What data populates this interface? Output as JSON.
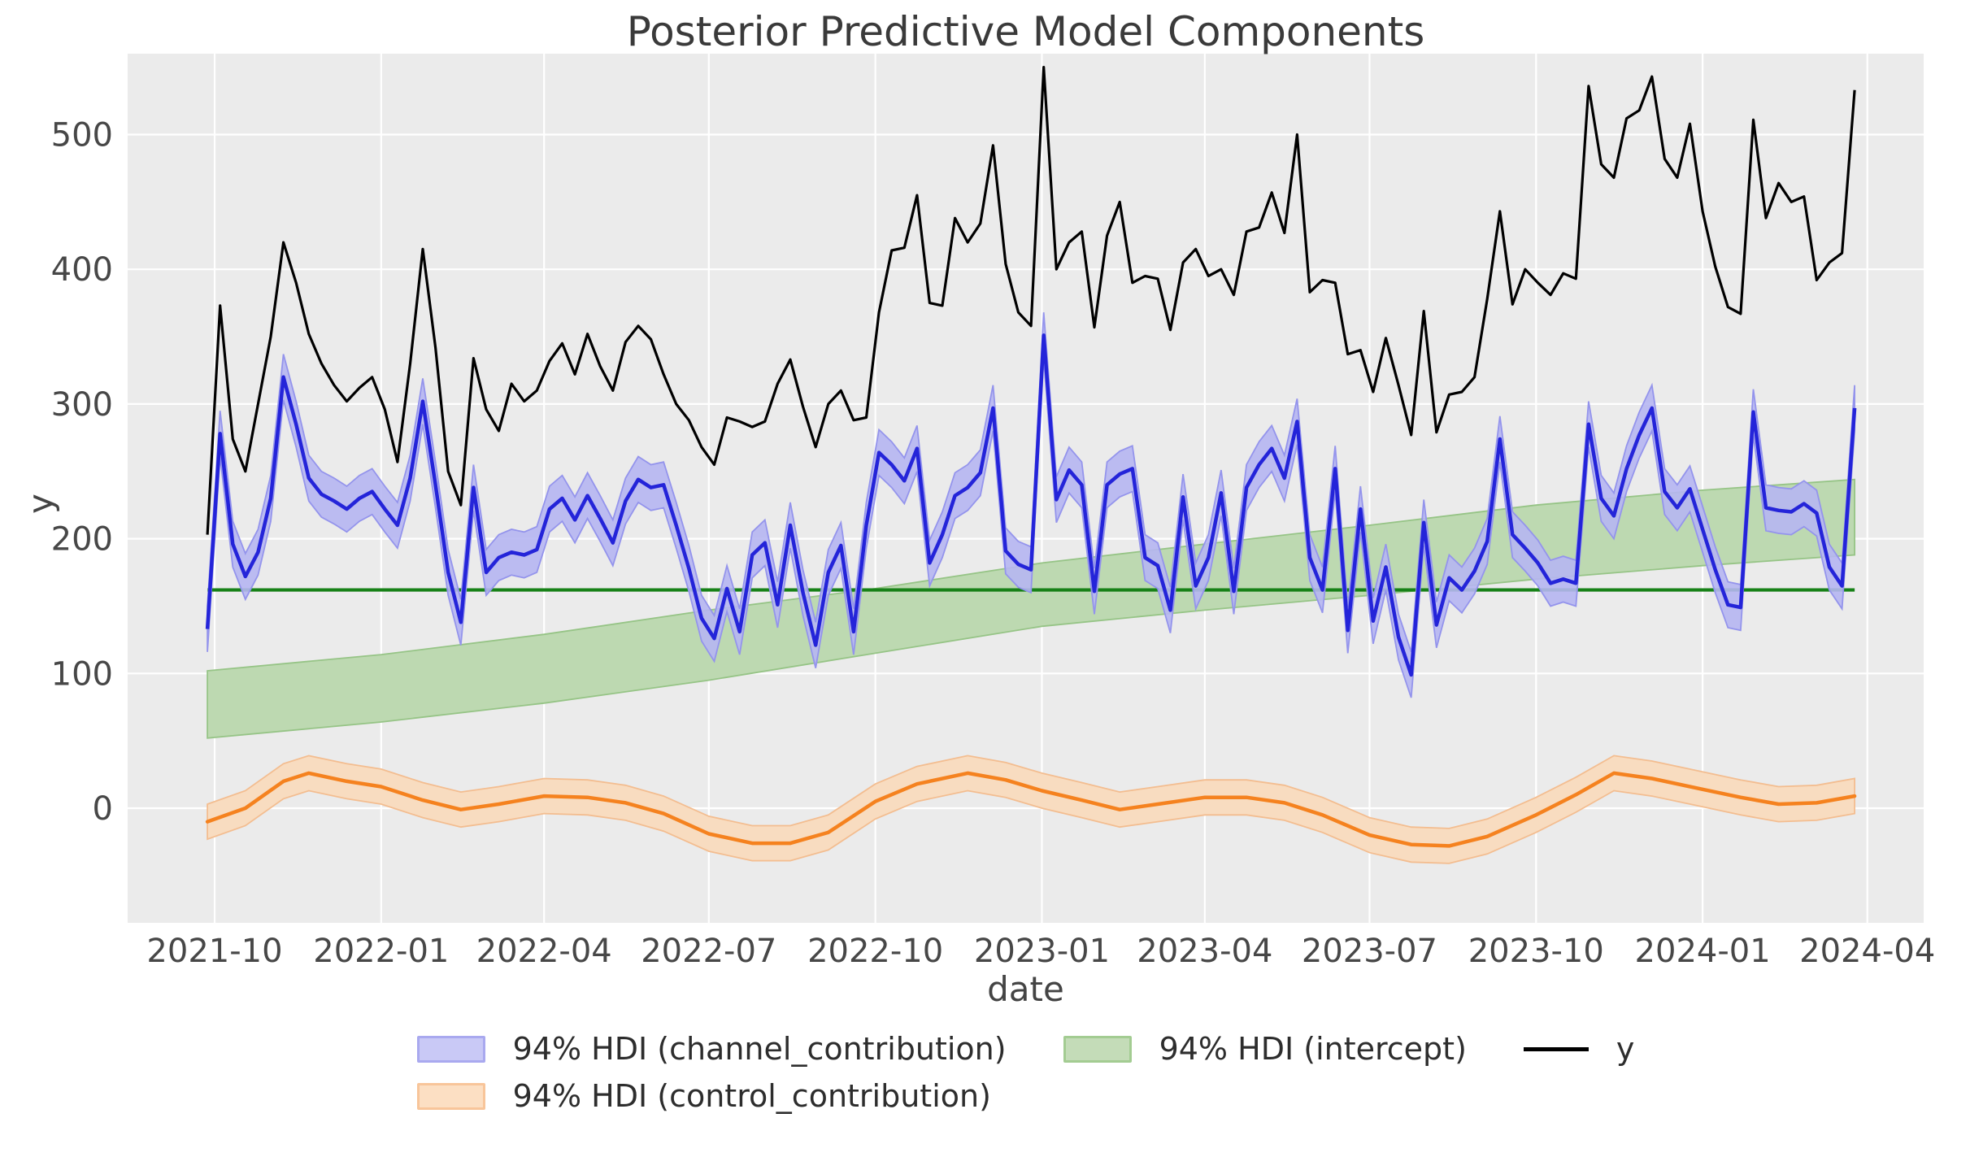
{
  "title": "Posterior Predictive Model Components",
  "axes": {
    "xlabel": "date",
    "ylabel": "y"
  },
  "legend": {
    "channel_label": "94% HDI (channel_contribution)",
    "intercept_label": "94% HDI (intercept)",
    "y_label": "y",
    "control_label": "94% HDI (control_contribution)"
  },
  "colors": {
    "plot_bg": "#ebebeb",
    "grid": "#ffffff",
    "y_line": "#000000",
    "channel_line": "#2424d9",
    "channel_band": "#b6b6f2",
    "channel_band_edge": "#9494ec",
    "intercept_line": "#178117",
    "intercept_band": "#bdd9b1",
    "intercept_band_edge": "#96c486",
    "control_line": "#f5821f",
    "control_band": "#f8dcc0",
    "control_band_edge": "#f3bd90",
    "tick_text": "#474747",
    "title_text": "#3a3a3a"
  },
  "chart_data": {
    "type": "line",
    "title": "Posterior Predictive Model Components",
    "xlabel": "date",
    "ylabel": "y",
    "grid": true,
    "legend_position": "below",
    "ylim": [
      -85,
      560
    ],
    "y_ticks": [
      0,
      100,
      200,
      300,
      400,
      500
    ],
    "x_ticks": [
      {
        "label": "2021-10",
        "date": "2021-10-01"
      },
      {
        "label": "2022-01",
        "date": "2022-01-01"
      },
      {
        "label": "2022-04",
        "date": "2022-04-01"
      },
      {
        "label": "2022-07",
        "date": "2022-07-01"
      },
      {
        "label": "2022-10",
        "date": "2022-10-01"
      },
      {
        "label": "2023-01",
        "date": "2023-01-01"
      },
      {
        "label": "2023-04",
        "date": "2023-04-01"
      },
      {
        "label": "2023-07",
        "date": "2023-07-01"
      },
      {
        "label": "2023-10",
        "date": "2023-10-01"
      },
      {
        "label": "2024-01",
        "date": "2024-01-01"
      },
      {
        "label": "2024-04",
        "date": "2024-04-01"
      }
    ],
    "weekly_x": {
      "start_date": "2021-09-27",
      "interval_days": 7,
      "n_points": 131
    },
    "series": [
      {
        "name": "y",
        "legend": "y",
        "kind": "line",
        "color": "#000000",
        "values": [
          203,
          373,
          274,
          250,
          300,
          350,
          420,
          390,
          352,
          330,
          314,
          302,
          312,
          320,
          296,
          257,
          330,
          415,
          342,
          250,
          225,
          334,
          296,
          280,
          315,
          302,
          310,
          332,
          345,
          322,
          352,
          328,
          310,
          346,
          358,
          348,
          322,
          300,
          288,
          268,
          255,
          290,
          287,
          283,
          287,
          315,
          333,
          298,
          268,
          300,
          310,
          288,
          290,
          368,
          414,
          416,
          455,
          375,
          373,
          438,
          420,
          434,
          492,
          404,
          368,
          358,
          550,
          400,
          420,
          428,
          357,
          425,
          450,
          390,
          395,
          393,
          355,
          405,
          415,
          395,
          400,
          381,
          428,
          431,
          457,
          427,
          500,
          383,
          392,
          390,
          337,
          340,
          309,
          349,
          314,
          277,
          369,
          279,
          307,
          309,
          320,
          378,
          443,
          374,
          400,
          390,
          381,
          397,
          393,
          536,
          478,
          468,
          512,
          518,
          543,
          482,
          468,
          508,
          443,
          402,
          372,
          367,
          511,
          438,
          464,
          450,
          454,
          392,
          405,
          412,
          533
        ]
      },
      {
        "name": "channel_contribution",
        "legend": "94% HDI (channel_contribution)",
        "kind": "line_with_hdi_band",
        "hdi": "94%",
        "hdi_half_width": 17,
        "values": [
          133,
          278,
          196,
          172,
          190,
          230,
          320,
          285,
          245,
          233,
          228,
          222,
          230,
          235,
          222,
          210,
          245,
          302,
          240,
          175,
          138,
          238,
          175,
          186,
          190,
          188,
          192,
          222,
          230,
          214,
          232,
          215,
          197,
          228,
          244,
          238,
          240,
          210,
          178,
          141,
          126,
          163,
          131,
          188,
          197,
          151,
          210,
          160,
          121,
          175,
          195,
          131,
          210,
          264,
          255,
          243,
          267,
          182,
          203,
          232,
          238,
          249,
          297,
          191,
          181,
          177,
          351,
          229,
          251,
          240,
          161,
          240,
          248,
          252,
          186,
          180,
          147,
          231,
          165,
          186,
          234,
          161,
          238,
          255,
          267,
          245,
          287,
          186,
          162,
          252,
          132,
          222,
          139,
          179,
          127,
          99,
          212,
          136,
          171,
          162,
          176,
          198,
          274,
          203,
          193,
          182,
          167,
          170,
          167,
          285,
          230,
          217,
          252,
          277,
          297,
          235,
          223,
          237,
          207,
          177,
          151,
          149,
          294,
          223,
          221,
          220,
          226,
          219,
          179,
          165,
          297
        ]
      },
      {
        "name": "intercept",
        "legend": "94% HDI (intercept)",
        "kind": "hline_with_hdi_band",
        "hdi": "94%",
        "mean": 162,
        "band_dates": [
          "2021-09-27",
          "2022-01-01",
          "2022-04-01",
          "2022-07-01",
          "2022-10-01",
          "2023-01-01",
          "2023-04-01",
          "2023-07-01",
          "2023-10-01",
          "2024-01-01",
          "2024-03-25"
        ],
        "band_lower": [
          52,
          64,
          78,
          95,
          115,
          135,
          147,
          158,
          170,
          180,
          188
        ],
        "band_upper": [
          102,
          114,
          129,
          147,
          163,
          182,
          196,
          210,
          225,
          236,
          244
        ]
      },
      {
        "name": "control_contribution",
        "legend": "94% HDI (control_contribution)",
        "kind": "line_with_hdi_band",
        "hdi": "94%",
        "hdi_half_width": 13,
        "dates": [
          "2021-09-27",
          "2021-10-18",
          "2021-11-08",
          "2021-11-22",
          "2021-12-13",
          "2022-01-01",
          "2022-01-24",
          "2022-02-14",
          "2022-03-07",
          "2022-04-01",
          "2022-04-25",
          "2022-05-16",
          "2022-06-06",
          "2022-07-01",
          "2022-07-25",
          "2022-08-15",
          "2022-09-05",
          "2022-10-01",
          "2022-10-24",
          "2022-11-21",
          "2022-12-12",
          "2023-01-01",
          "2023-01-23",
          "2023-02-13",
          "2023-03-06",
          "2023-04-01",
          "2023-04-24",
          "2023-05-15",
          "2023-06-05",
          "2023-07-01",
          "2023-07-24",
          "2023-08-14",
          "2023-09-04",
          "2023-10-01",
          "2023-10-23",
          "2023-11-13",
          "2023-12-04",
          "2024-01-01",
          "2024-01-22",
          "2024-02-12",
          "2024-03-04",
          "2024-03-25"
        ],
        "values": [
          -10,
          0,
          20,
          26,
          20,
          16,
          6,
          -1,
          3,
          9,
          8,
          4,
          -4,
          -19,
          -26,
          -26,
          -18,
          5,
          18,
          26,
          21,
          13,
          6,
          -1,
          3,
          8,
          8,
          4,
          -5,
          -20,
          -27,
          -28,
          -21,
          -5,
          10,
          26,
          22,
          14,
          8,
          3,
          4,
          9
        ]
      }
    ]
  }
}
